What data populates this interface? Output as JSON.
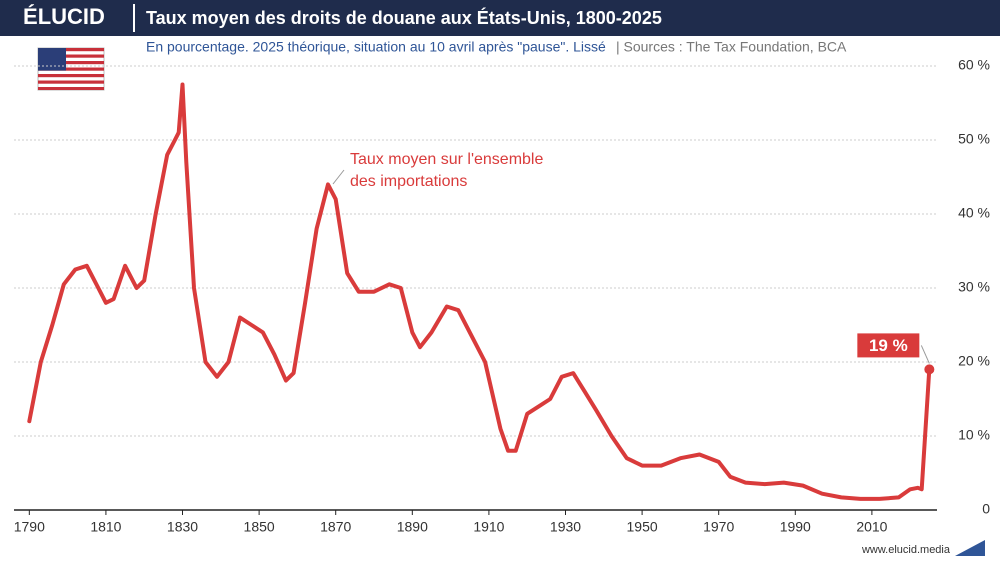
{
  "chart_data": {
    "type": "line",
    "brand": "ÉLUCID",
    "title": "Taux moyen des droits de douane aux États-Unis, 1800-2025",
    "subtitle": "En pourcentage. 2025 théorique, situation au 10 avril après \"pause\". Lissé",
    "source": "|  Sources : The Tax Foundation, BCA",
    "annotation": [
      "Taux moyen sur l'ensemble",
      "des importations"
    ],
    "footer": "www.elucid.media",
    "x": [
      1790,
      1793,
      1796,
      1799,
      1802,
      1805,
      1808,
      1810,
      1812,
      1815,
      1818,
      1820,
      1823,
      1826,
      1828,
      1829,
      1830,
      1831,
      1833,
      1836,
      1839,
      1842,
      1845,
      1848,
      1851,
      1854,
      1857,
      1859,
      1862,
      1865,
      1868,
      1870,
      1873,
      1876,
      1880,
      1884,
      1887,
      1890,
      1892,
      1895,
      1899,
      1902,
      1905,
      1909,
      1913,
      1915,
      1917,
      1920,
      1923,
      1926,
      1929,
      1932,
      1935,
      1938,
      1942,
      1946,
      1950,
      1955,
      1960,
      1965,
      1970,
      1973,
      1977,
      1982,
      1987,
      1992,
      1997,
      2002,
      2007,
      2012,
      2017,
      2020,
      2022,
      2023,
      2025
    ],
    "series": [
      {
        "name": "Taux moyen",
        "color": "#d93b3b",
        "values": [
          12,
          20,
          25,
          30.5,
          32.5,
          33,
          30,
          28,
          28.5,
          33,
          30,
          31,
          40,
          48,
          50,
          51,
          57.5,
          47,
          30,
          20,
          18,
          20,
          26,
          25,
          24,
          21,
          17.5,
          18.5,
          28,
          38,
          44,
          42,
          32,
          29.5,
          29.5,
          30.5,
          30,
          24,
          22,
          24,
          27.5,
          27,
          24,
          20,
          11,
          8,
          8,
          13,
          14,
          15,
          18,
          18.5,
          16,
          13.5,
          10,
          7,
          6,
          6,
          7,
          7.5,
          6.5,
          4.5,
          3.7,
          3.5,
          3.7,
          3.3,
          2.2,
          1.7,
          1.5,
          1.5,
          1.7,
          2.8,
          3,
          2.8,
          19
        ],
        "value_labels": [
          null,
          null,
          null,
          null,
          null,
          null,
          null,
          null,
          null,
          null,
          null,
          null,
          null,
          null,
          null,
          null,
          null,
          null,
          null,
          null,
          null,
          null,
          null,
          null,
          null,
          null,
          null,
          null,
          null,
          null,
          null,
          null,
          null,
          null,
          null,
          null,
          null,
          null,
          null,
          null,
          null,
          null,
          null,
          null,
          null,
          null,
          null,
          null,
          null,
          null,
          null,
          null,
          null,
          null,
          null,
          null,
          null,
          null,
          null,
          null,
          null,
          null,
          null,
          null,
          null,
          null,
          null,
          null,
          null,
          null,
          null,
          null,
          null,
          null,
          "19 %"
        ]
      }
    ],
    "xlim": [
      1786,
      2027
    ],
    "xticks": [
      1790,
      1810,
      1830,
      1850,
      1870,
      1890,
      1910,
      1930,
      1950,
      1970,
      1990,
      2010
    ],
    "ylim": [
      0,
      60
    ],
    "yticks": [
      0,
      {
        "value": 10,
        "label": "10 %"
      },
      {
        "value": 20,
        "label": "20 %"
      },
      {
        "value": 30,
        "label": "30 %"
      },
      {
        "value": 40,
        "label": "40 %"
      },
      {
        "value": 50,
        "label": "50 %"
      },
      {
        "value": 60,
        "label": "60 %"
      }
    ],
    "grid": true
  }
}
